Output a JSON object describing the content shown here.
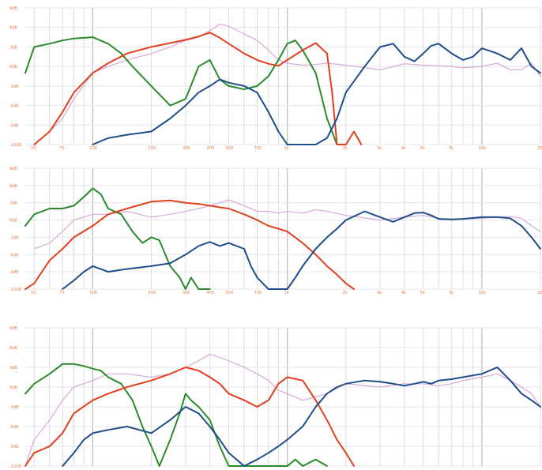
{
  "chart_data": [
    {
      "type": "line",
      "panel": 1,
      "y_tick_labels": [
        "9dB",
        "6dB",
        "3dB",
        "0dB",
        "-3dB",
        "-6dB",
        "-9dB",
        "-12dB"
      ],
      "ylim": [
        -12,
        9
      ],
      "y_scale": "linear",
      "x_scale": "log",
      "xlim": [
        45,
        20000
      ],
      "x_tick_labels": [
        "50",
        "70",
        "100",
        "200",
        "300",
        "400",
        "500",
        "700",
        "1k",
        "2k",
        "3k",
        "4k",
        "5k",
        "7k",
        "10k",
        "20k"
      ],
      "x_tick_values": [
        50,
        70,
        100,
        200,
        300,
        400,
        500,
        700,
        1000,
        2000,
        3000,
        4000,
        5000,
        7000,
        10000,
        20000
      ],
      "grid": true,
      "series": [
        {
          "color": "#2b8a2b",
          "x": [
            45,
            50,
            60,
            70,
            80,
            100,
            120,
            140,
            160,
            200,
            250,
            300,
            350,
            400,
            450,
            500,
            600,
            700,
            800,
            900,
            1000,
            1100,
            1200,
            1400,
            1600,
            1800,
            2000
          ],
          "y": [
            -1,
            3,
            3.5,
            4,
            4.3,
            4.5,
            3.5,
            2,
            0,
            -3,
            -6,
            -5,
            0,
            1,
            -2,
            -3,
            -3.5,
            -3,
            -1.5,
            1,
            3.5,
            4,
            2.5,
            -1,
            -8,
            -12,
            -12
          ]
        },
        {
          "color": "#e0401e",
          "x": [
            50,
            60,
            70,
            80,
            100,
            120,
            150,
            200,
            250,
            300,
            350,
            400,
            450,
            500,
            600,
            700,
            800,
            900,
            1000,
            1200,
            1400,
            1600,
            1700,
            1800,
            2000,
            2200,
            2400
          ],
          "y": [
            -12,
            -10,
            -7,
            -4,
            -1,
            0.5,
            2,
            3,
            3.6,
            4.1,
            4.6,
            5.2,
            4.4,
            3.5,
            2,
            1,
            0.4,
            0.1,
            1,
            2.5,
            3.6,
            2,
            -4,
            -12,
            -12,
            -10,
            -12
          ]
        },
        {
          "color": "#1e4e8a",
          "x": [
            100,
            120,
            150,
            200,
            250,
            300,
            350,
            400,
            450,
            500,
            600,
            700,
            800,
            900,
            1000,
            1200,
            1400,
            1600,
            1800,
            2000,
            2500,
            3000,
            3500,
            4000,
            4500,
            5000,
            5500,
            6000,
            7000,
            8000,
            9000,
            10000,
            12000,
            14000,
            16000,
            18000,
            20000
          ],
          "y": [
            -12,
            -11,
            -10.5,
            -10,
            -8,
            -6,
            -4,
            -3,
            -2,
            -2.5,
            -3,
            -4,
            -7,
            -10,
            -12,
            -12,
            -12,
            -11,
            -8,
            -4,
            0,
            3,
            3.5,
            1.5,
            0.8,
            2,
            3.2,
            3.5,
            2,
            1,
            1.5,
            2.8,
            2,
            1,
            2.8,
            0,
            -1
          ]
        },
        {
          "color": "#d8a8d8",
          "x": [
            50,
            60,
            70,
            80,
            100,
            120,
            150,
            200,
            250,
            300,
            350,
            400,
            450,
            500,
            600,
            700,
            800,
            900,
            1000,
            1200,
            1400,
            1600,
            2000,
            3000,
            4000,
            5000,
            6000,
            7000,
            8000,
            10000,
            12000,
            14000,
            16000,
            18000,
            20000
          ],
          "y": [
            -12,
            -10,
            -8,
            -5,
            -1,
            0,
            1,
            2,
            3,
            4,
            4.5,
            5.5,
            6.5,
            6.2,
            5,
            4,
            2.5,
            1,
            0.5,
            0.2,
            0.3,
            0.5,
            0.2,
            -0.5,
            0.4,
            0.2,
            0.1,
            0,
            -0.2,
            0,
            0.5,
            -0.5,
            -0.5,
            0.5,
            -1.5
          ]
        }
      ]
    },
    {
      "type": "line",
      "panel": 2,
      "y_tick_labels": [
        "9dB",
        "6dB",
        "3dB",
        "0dB",
        "-3dB",
        "-6dB",
        "-9dB",
        "-12dB"
      ],
      "ylim": [
        -12,
        9
      ],
      "y_scale": "linear",
      "x_scale": "log",
      "xlim": [
        45,
        20000
      ],
      "x_tick_labels": [
        "50",
        "70",
        "100",
        "200",
        "300",
        "400",
        "500",
        "700",
        "1k",
        "2k",
        "3k",
        "4k",
        "5k",
        "7k",
        "10k",
        "20k"
      ],
      "x_tick_values": [
        50,
        70,
        100,
        200,
        300,
        400,
        500,
        700,
        1000,
        2000,
        3000,
        4000,
        5000,
        7000,
        10000,
        20000
      ],
      "grid": true,
      "series": [
        {
          "color": "#2b8a2b",
          "x": [
            45,
            50,
            60,
            70,
            80,
            90,
            100,
            110,
            120,
            140,
            160,
            180,
            200,
            220,
            250,
            280,
            300,
            320,
            350,
            400
          ],
          "y": [
            -1,
            1,
            2,
            2,
            2.5,
            4,
            5.5,
            4.5,
            2,
            1,
            -2,
            -4,
            -3,
            -3.5,
            -8,
            -10,
            -12,
            -10,
            -12,
            -12
          ]
        },
        {
          "color": "#e0401e",
          "x": [
            45,
            50,
            60,
            70,
            80,
            100,
            120,
            150,
            200,
            250,
            300,
            350,
            400,
            450,
            500,
            600,
            700,
            800,
            900,
            1000,
            1200,
            1400,
            1600,
            1800,
            2000,
            2200
          ],
          "y": [
            -12,
            -11,
            -7,
            -5,
            -3,
            -1,
            1,
            2,
            3.2,
            3.4,
            3.0,
            2.8,
            2.5,
            2.2,
            2,
            1,
            0,
            -1,
            -1.5,
            -2,
            -4,
            -6,
            -8,
            -9.5,
            -11,
            -12
          ]
        },
        {
          "color": "#1e4e8a",
          "x": [
            70,
            80,
            90,
            100,
            120,
            150,
            200,
            250,
            300,
            350,
            400,
            450,
            500,
            600,
            650,
            700,
            800,
            900,
            1000,
            1100,
            1200,
            1400,
            1600,
            1800,
            2000,
            2500,
            3000,
            3500,
            4000,
            4500,
            5000,
            5500,
            6000,
            7000,
            8000,
            10000,
            12000,
            14000,
            16000,
            18000,
            20000
          ],
          "y": [
            -12,
            -10.5,
            -9,
            -8,
            -9,
            -8.5,
            -8,
            -7.5,
            -6,
            -4.5,
            -3.8,
            -4.5,
            -4,
            -5,
            -8,
            -10,
            -12,
            -12,
            -12,
            -10,
            -8,
            -5,
            -3,
            -1.5,
            0,
            1.5,
            0.5,
            -0.3,
            0.5,
            1.2,
            1.3,
            0.8,
            0.2,
            0.1,
            0.2,
            0.5,
            0.5,
            0.3,
            -1,
            -3,
            -5
          ]
        },
        {
          "color": "#d8a8d8",
          "x": [
            50,
            60,
            70,
            80,
            100,
            120,
            150,
            200,
            250,
            300,
            350,
            400,
            450,
            500,
            600,
            700,
            800,
            900,
            1000,
            1200,
            1400,
            1600,
            2000,
            3000,
            4000,
            5000,
            6000,
            7000,
            8000,
            10000,
            12000,
            14000,
            16000,
            18000,
            20000
          ],
          "y": [
            -5,
            -4,
            -2,
            0,
            1,
            1,
            1.5,
            0.5,
            1,
            1.5,
            2,
            2.5,
            3,
            3.5,
            2.5,
            1.5,
            1.5,
            1.2,
            1.5,
            1.2,
            1.8,
            1.5,
            0.8,
            0,
            0.5,
            0.8,
            0.3,
            0,
            0.2,
            0.3,
            0.5,
            0.6,
            0.3,
            -1,
            -2
          ]
        }
      ]
    },
    {
      "type": "line",
      "panel": 3,
      "y_tick_labels": [
        "9dB",
        "6dB",
        "3dB",
        "0dB",
        "-3dB",
        "-6dB",
        "-9dB",
        "-12dB"
      ],
      "ylim": [
        -12,
        9
      ],
      "y_scale": "linear",
      "x_scale": "log",
      "xlim": [
        45,
        20000
      ],
      "x_tick_labels": [],
      "x_tick_values": [
        50,
        70,
        100,
        200,
        300,
        400,
        500,
        700,
        1000,
        2000,
        3000,
        4000,
        5000,
        7000,
        10000,
        20000
      ],
      "grid": true,
      "series": [
        {
          "color": "#2b8a2b",
          "x": [
            45,
            50,
            60,
            70,
            80,
            90,
            100,
            110,
            120,
            140,
            160,
            180,
            200,
            220,
            250,
            280,
            300,
            320,
            350,
            400,
            450,
            500,
            600,
            700,
            800,
            900,
            1000,
            1100,
            1200,
            1400,
            1600
          ],
          "y": [
            -1,
            0.5,
            2,
            3.5,
            3.5,
            3.2,
            2.8,
            2.5,
            1.5,
            0.5,
            -2,
            -6,
            -9,
            -12,
            -8,
            -4,
            -1,
            -2,
            -3,
            -5,
            -9,
            -12,
            -12,
            -12,
            -12,
            -12,
            -12,
            -11,
            -12,
            -11,
            -12
          ]
        },
        {
          "color": "#e0401e",
          "x": [
            45,
            50,
            60,
            70,
            80,
            100,
            120,
            150,
            200,
            250,
            300,
            350,
            400,
            450,
            500,
            600,
            700,
            800,
            900,
            1000,
            1200,
            1400,
            1600,
            1800,
            2000,
            2200
          ],
          "y": [
            -12,
            -10,
            -9,
            -7,
            -4,
            -2,
            -1,
            0,
            1,
            2,
            3,
            2.5,
            1.5,
            0.5,
            -1,
            -2,
            -3,
            -2,
            0.5,
            1.5,
            1,
            -2,
            -5,
            -8,
            -10,
            -12
          ]
        },
        {
          "color": "#1e4e8a",
          "x": [
            70,
            80,
            90,
            100,
            120,
            150,
            200,
            250,
            300,
            350,
            400,
            450,
            500,
            600,
            700,
            800,
            900,
            1000,
            1200,
            1400,
            1600,
            1800,
            2000,
            2500,
            3000,
            3500,
            4000,
            4500,
            5000,
            5500,
            6000,
            7000,
            8000,
            10000,
            12000,
            14000,
            16000,
            18000,
            20000
          ],
          "y": [
            -12,
            -10,
            -8,
            -7,
            -6.5,
            -6,
            -7,
            -5,
            -3,
            -4,
            -6,
            -8,
            -10,
            -12,
            -11,
            -10,
            -9,
            -8,
            -6,
            -3,
            -1,
            0,
            0.5,
            1,
            0.8,
            0.5,
            0.2,
            0.5,
            0.8,
            0.5,
            1,
            1.2,
            1.5,
            2,
            3,
            1,
            -1,
            -2,
            -3
          ]
        },
        {
          "color": "#d8a8d8",
          "x": [
            45,
            50,
            60,
            70,
            80,
            100,
            120,
            150,
            200,
            250,
            300,
            350,
            400,
            450,
            500,
            600,
            700,
            800,
            900,
            1000,
            1200,
            1400,
            1600,
            2000,
            3000,
            4000,
            5000,
            6000,
            7000,
            8000,
            10000,
            12000,
            14000,
            16000,
            18000,
            20000
          ],
          "y": [
            -12,
            -8,
            -5,
            -2,
            0,
            1,
            2,
            2,
            1.5,
            2,
            3,
            4,
            5,
            4.5,
            4,
            3,
            2,
            1,
            -0.5,
            -1,
            -2,
            -1.5,
            -1,
            0.5,
            0,
            0.5,
            0.5,
            0.2,
            0.5,
            1,
            1.5,
            2,
            1,
            0,
            -1,
            -3
          ]
        }
      ]
    }
  ]
}
